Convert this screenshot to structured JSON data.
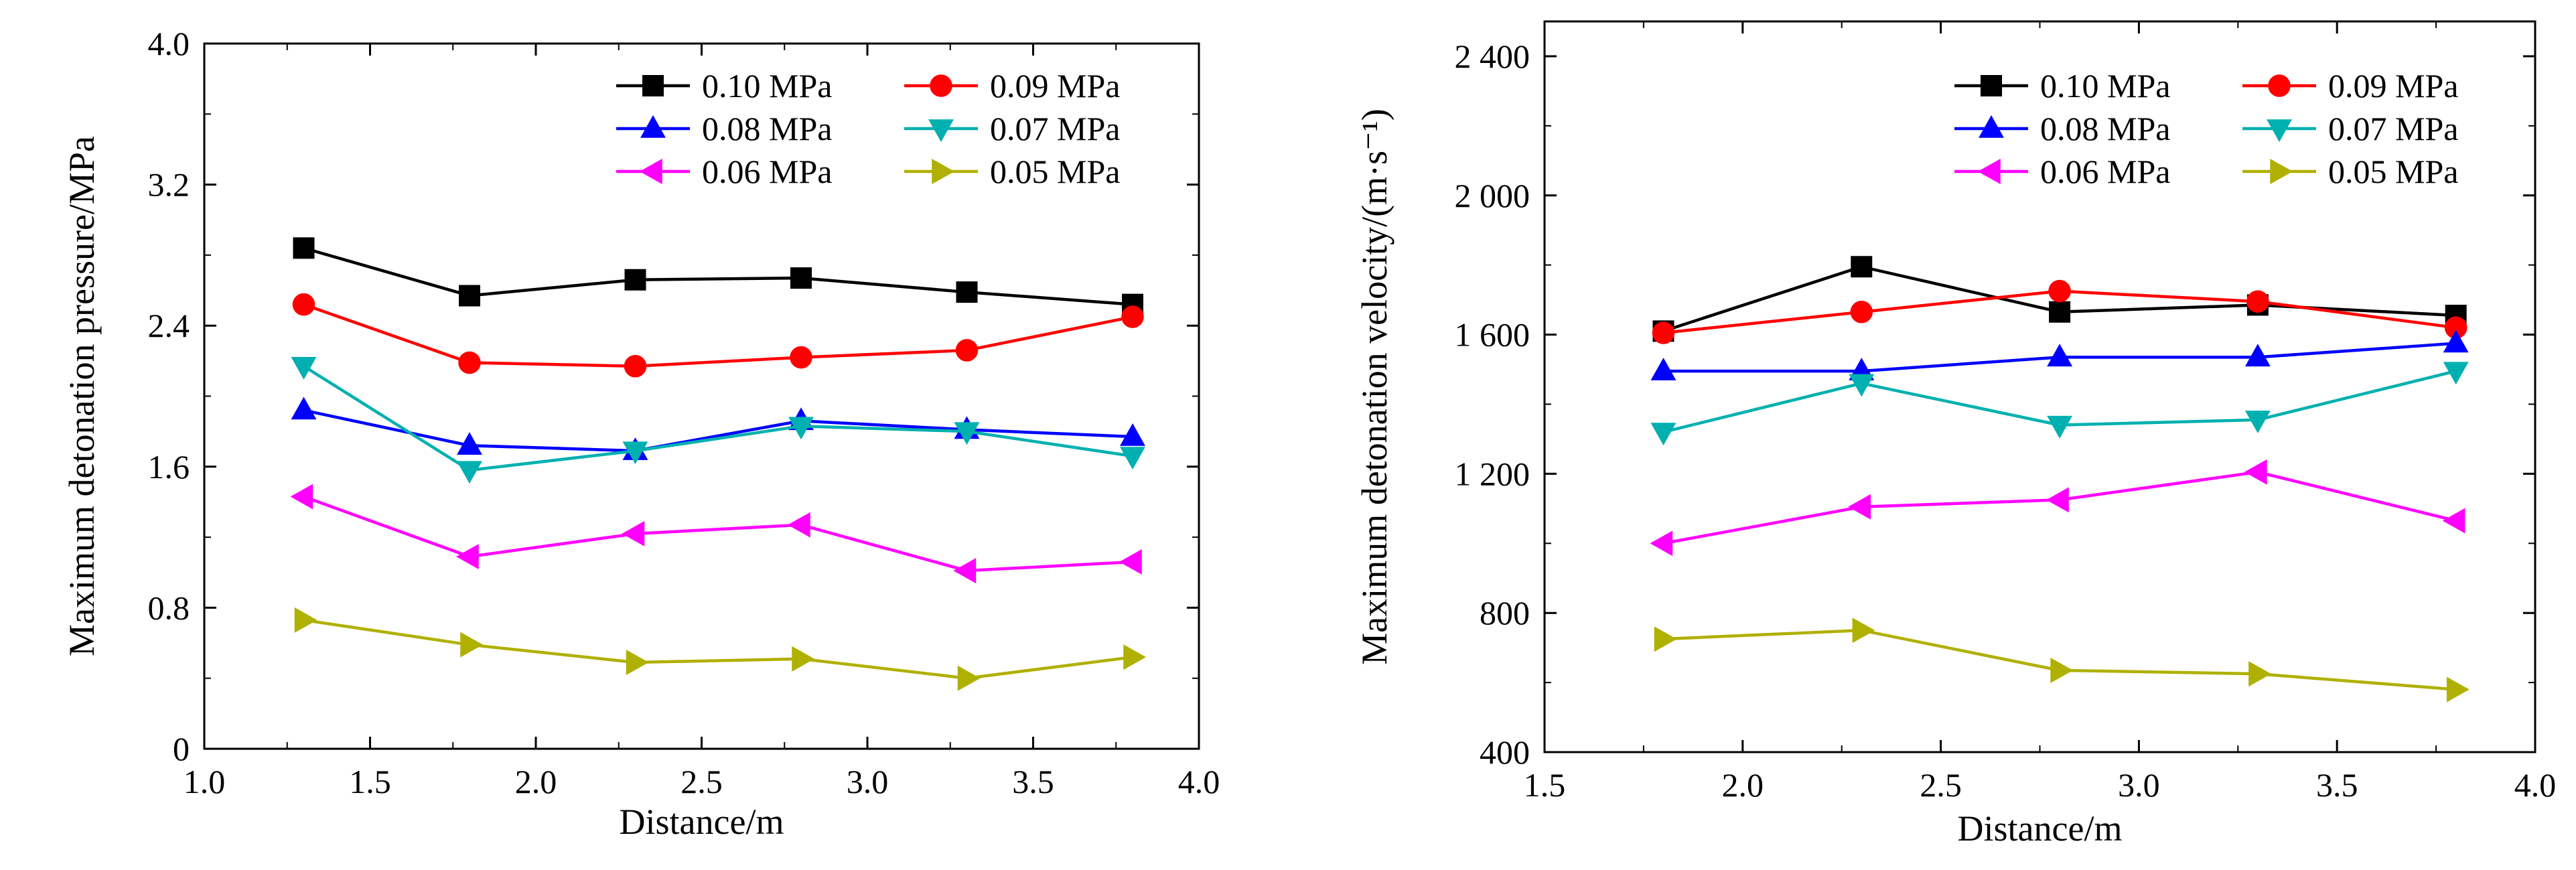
{
  "chart_data": [
    {
      "type": "line",
      "xlabel": "Distance/m",
      "ylabel": "Maximum detonation pressure/MPa",
      "xlim": [
        1.0,
        4.0
      ],
      "ylim": [
        0,
        4.0
      ],
      "xticks": [
        1.0,
        1.5,
        2.0,
        2.5,
        3.0,
        3.5,
        4.0
      ],
      "xtick_labels": [
        "1.0",
        "1.5",
        "2.0",
        "2.5",
        "3.0",
        "3.5",
        "4.0"
      ],
      "yticks": [
        0,
        0.8,
        1.6,
        2.4,
        3.2,
        4.0
      ],
      "ytick_labels": [
        "0",
        "0.8",
        "1.6",
        "2.4",
        "3.2",
        "4.0"
      ],
      "grid": false,
      "legend_position": "top-right",
      "series": [
        {
          "name": "0.10 MPa",
          "color": "#000000",
          "marker": "square",
          "x": [
            1.3,
            1.8,
            2.3,
            2.8,
            3.3,
            3.8
          ],
          "y": [
            2.84,
            2.57,
            2.66,
            2.67,
            2.59,
            2.52
          ]
        },
        {
          "name": "0.09 MPa",
          "color": "#ff0000",
          "marker": "circle",
          "x": [
            1.3,
            1.8,
            2.3,
            2.8,
            3.3,
            3.8
          ],
          "y": [
            2.52,
            2.19,
            2.17,
            2.22,
            2.26,
            2.45
          ]
        },
        {
          "name": "0.08 MPa",
          "color": "#0000ff",
          "marker": "triangle-up",
          "x": [
            1.3,
            1.8,
            2.3,
            2.8,
            3.3,
            3.8
          ],
          "y": [
            1.92,
            1.72,
            1.69,
            1.86,
            1.81,
            1.77
          ]
        },
        {
          "name": "0.07 MPa",
          "color": "#00b0b0",
          "marker": "triangle-down",
          "x": [
            1.3,
            1.8,
            2.3,
            2.8,
            3.3,
            3.8
          ],
          "y": [
            2.17,
            1.58,
            1.69,
            1.83,
            1.8,
            1.66
          ]
        },
        {
          "name": "0.06 MPa",
          "color": "#ff00ff",
          "marker": "triangle-left",
          "x": [
            1.3,
            1.8,
            2.3,
            2.8,
            3.3,
            3.8
          ],
          "y": [
            1.43,
            1.09,
            1.22,
            1.27,
            1.01,
            1.06
          ]
        },
        {
          "name": "0.05 MPa",
          "color": "#b0b000",
          "marker": "triangle-right",
          "x": [
            1.3,
            1.8,
            2.3,
            2.8,
            3.3,
            3.8
          ],
          "y": [
            0.73,
            0.59,
            0.49,
            0.51,
            0.4,
            0.52
          ]
        }
      ]
    },
    {
      "type": "line",
      "xlabel": "Distance/m",
      "ylabel": "Maximum detonation velocity/(m·s⁻¹)",
      "xlim": [
        1.5,
        4.0
      ],
      "ylim": [
        400,
        2500
      ],
      "xticks": [
        1.5,
        2.0,
        2.5,
        3.0,
        3.5,
        4.0
      ],
      "xtick_labels": [
        "1.5",
        "2.0",
        "2.5",
        "3.0",
        "3.5",
        "4.0"
      ],
      "yticks": [
        400,
        800,
        1200,
        1600,
        2000,
        2400
      ],
      "ytick_labels": [
        "400",
        "800",
        "1 200",
        "1 600",
        "2 000",
        "2 400"
      ],
      "grid": false,
      "legend_position": "top-right",
      "series": [
        {
          "name": "0.10 MPa",
          "color": "#000000",
          "marker": "square",
          "x": [
            1.8,
            2.3,
            2.8,
            3.3,
            3.8
          ],
          "y": [
            1610,
            1795,
            1665,
            1685,
            1655
          ]
        },
        {
          "name": "0.09 MPa",
          "color": "#ff0000",
          "marker": "circle",
          "x": [
            1.8,
            2.3,
            2.8,
            3.3,
            3.8
          ],
          "y": [
            1605,
            1665,
            1725,
            1695,
            1620
          ]
        },
        {
          "name": "0.08 MPa",
          "color": "#0000ff",
          "marker": "triangle-up",
          "x": [
            1.8,
            2.3,
            2.8,
            3.3,
            3.8
          ],
          "y": [
            1495,
            1495,
            1535,
            1535,
            1575
          ]
        },
        {
          "name": "0.07 MPa",
          "color": "#00b0b0",
          "marker": "triangle-down",
          "x": [
            1.8,
            2.3,
            2.8,
            3.3,
            3.8
          ],
          "y": [
            1320,
            1460,
            1340,
            1355,
            1495
          ]
        },
        {
          "name": "0.06 MPa",
          "color": "#ff00ff",
          "marker": "triangle-left",
          "x": [
            1.8,
            2.3,
            2.8,
            3.3,
            3.8
          ],
          "y": [
            1000,
            1105,
            1125,
            1205,
            1065
          ]
        },
        {
          "name": "0.05 MPa",
          "color": "#b0b000",
          "marker": "triangle-right",
          "x": [
            1.8,
            2.3,
            2.8,
            3.3,
            3.8
          ],
          "y": [
            725,
            750,
            635,
            625,
            580
          ]
        }
      ]
    }
  ]
}
